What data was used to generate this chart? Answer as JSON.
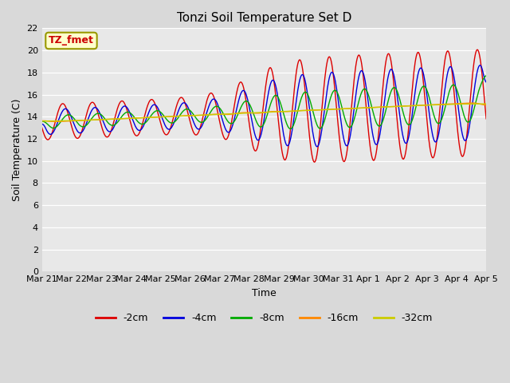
{
  "title": "Tonzi Soil Temperature Set D",
  "xlabel": "Time",
  "ylabel": "Soil Temperature (C)",
  "annotation": "TZ_fmet",
  "ylim": [
    0,
    22
  ],
  "yticks": [
    0,
    2,
    4,
    6,
    8,
    10,
    12,
    14,
    16,
    18,
    20,
    22
  ],
  "date_labels": [
    "Mar 21",
    "Mar 22",
    "Mar 23",
    "Mar 24",
    "Mar 25",
    "Mar 26",
    "Mar 27",
    "Mar 28",
    "Mar 29",
    "Mar 30",
    "Mar 31",
    "Apr 1",
    "Apr 2",
    "Apr 3",
    "Apr 4",
    "Apr 5"
  ],
  "series_labels": [
    "-2cm",
    "-4cm",
    "-8cm",
    "-16cm",
    "-32cm"
  ],
  "series_colors": [
    "#dd0000",
    "#0000dd",
    "#00aa00",
    "#ff8800",
    "#cccc00"
  ],
  "background_color": "#d9d9d9",
  "plot_bg_color": "#e8e8e8",
  "figsize": [
    6.4,
    4.8
  ],
  "dpi": 100,
  "title_fontsize": 11,
  "label_fontsize": 9,
  "tick_fontsize": 8,
  "legend_fontsize": 9,
  "n_days": 15,
  "n_per_day": 48
}
